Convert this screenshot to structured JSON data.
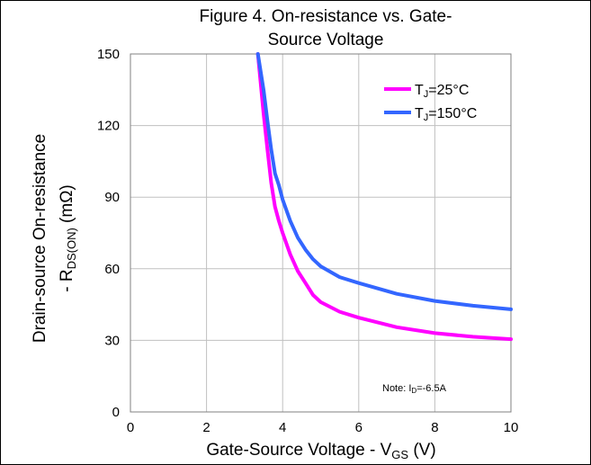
{
  "chart_data": {
    "type": "line",
    "title_lines": [
      "Figure 4. On-resistance vs. Gate-",
      "Source Voltage"
    ],
    "xlabel": {
      "main": "Gate-Source Voltage - V",
      "sub": "GS",
      "tail": " (V)"
    },
    "ylabel": {
      "line1": "Drain-source On-resistance",
      "prefix": "- R",
      "sub": "DS(ON)",
      "tail": " (mΩ)"
    },
    "xlim": [
      0,
      10
    ],
    "ylim": [
      0,
      150
    ],
    "xticks": [
      0,
      2,
      4,
      6,
      8,
      10
    ],
    "yticks": [
      0,
      30,
      60,
      90,
      120,
      150
    ],
    "grid": true,
    "legend_position": "top-right",
    "note": {
      "prefix": "Note: I",
      "sub": "D",
      "tail": "=-6.5A"
    },
    "series": [
      {
        "name": {
          "prefix": "T",
          "sub": "J",
          "tail": "=25°C"
        },
        "color": "#ff00ff",
        "x": [
          3.35,
          3.5,
          3.6,
          3.7,
          3.8,
          3.9,
          4.0,
          4.2,
          4.4,
          4.6,
          4.8,
          5.0,
          5.5,
          6.0,
          7.0,
          8.0,
          9.0,
          10.0
        ],
        "y": [
          150,
          125,
          110,
          96,
          86,
          80,
          75,
          66,
          59,
          54,
          49,
          46,
          42,
          39.5,
          35.5,
          33,
          31.5,
          30.5
        ]
      },
      {
        "name": {
          "prefix": "T",
          "sub": "J",
          "tail": "=150°C"
        },
        "color": "#3366ff",
        "x": [
          3.35,
          3.5,
          3.6,
          3.7,
          3.8,
          3.9,
          4.0,
          4.2,
          4.4,
          4.6,
          4.8,
          5.0,
          5.5,
          6.0,
          7.0,
          8.0,
          9.0,
          10.0
        ],
        "y": [
          150,
          135,
          122,
          110,
          100,
          95,
          89,
          80,
          73,
          68,
          64,
          61,
          56.5,
          54,
          49.5,
          46.5,
          44.5,
          43
        ]
      }
    ]
  }
}
